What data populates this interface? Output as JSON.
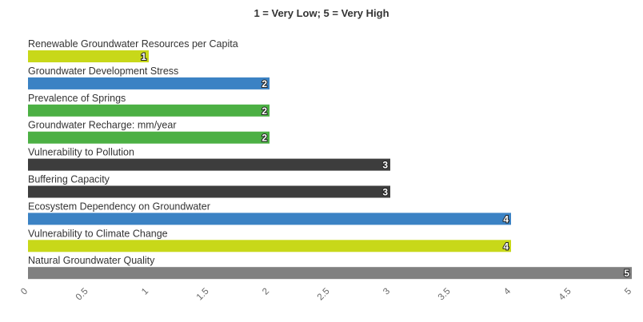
{
  "chart_data": {
    "type": "bar",
    "orientation": "horizontal",
    "title": "1 = Very Low; 5 = Very High",
    "categories": [
      "Renewable Groundwater Resources per Capita",
      "Groundwater Development Stress",
      "Prevalence of Springs",
      "Groundwater Recharge: mm/year",
      "Vulnerability to Pollution",
      "Buffering Capacity",
      "Ecosystem Dependency on Groundwater",
      "Vulnerability to Climate Change",
      "Natural Groundwater Quality"
    ],
    "values": [
      1,
      2,
      2,
      2,
      3,
      3,
      4,
      4,
      5
    ],
    "colors": [
      "#c8d819",
      "#3b82c4",
      "#4cb044",
      "#4cb044",
      "#3d3d3d",
      "#3d3d3d",
      "#3b82c4",
      "#c8d819",
      "#808080"
    ],
    "data_labels": [
      "1",
      "2",
      "2",
      "2",
      "3",
      "3",
      "4",
      "4",
      "5"
    ],
    "xlim": [
      0,
      5
    ],
    "xticks": [
      "0",
      "0.5",
      "1",
      "1.5",
      "2",
      "2.5",
      "3",
      "3.5",
      "4",
      "4.5",
      "5"
    ],
    "tick_values": [
      0,
      0.5,
      1,
      1.5,
      2,
      2.5,
      3,
      3.5,
      4,
      4.5,
      5
    ],
    "xlabel": "",
    "ylabel": "",
    "grid": false,
    "legend": "none"
  }
}
